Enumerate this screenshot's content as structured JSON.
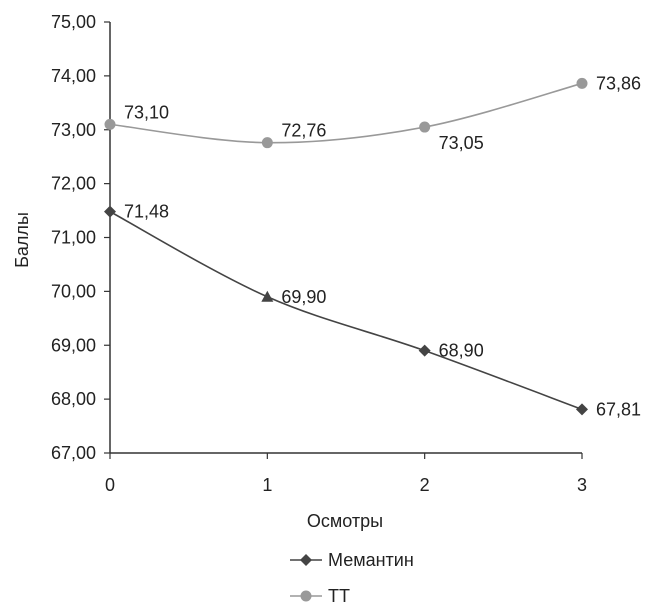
{
  "chart_data": {
    "type": "line",
    "title": "",
    "xlabel": "Осмотры",
    "ylabel": "Баллы",
    "x": [
      0,
      1,
      2,
      3
    ],
    "x_tick_labels": [
      "0",
      "1",
      "2",
      "3"
    ],
    "ylim": [
      67,
      75
    ],
    "y_tick_labels": [
      "67,00",
      "68,00",
      "69,00",
      "70,00",
      "71,00",
      "72,00",
      "73,00",
      "74,00",
      "75,00"
    ],
    "grid": false,
    "legend_position": "bottom",
    "series": [
      {
        "name": "Мемантин",
        "values": [
          71.48,
          69.9,
          68.9,
          67.81
        ],
        "labels": [
          "71,48",
          "69,90",
          "68,90",
          "67,81"
        ],
        "markers": [
          "diamond",
          "triangle",
          "diamond",
          "diamond"
        ],
        "color": "#444444"
      },
      {
        "name": "ТТ",
        "values": [
          73.1,
          72.76,
          73.05,
          73.86
        ],
        "labels": [
          "73,10",
          "72,76",
          "73,05",
          "73,86"
        ],
        "markers": [
          "circle",
          "circle",
          "circle",
          "circle"
        ],
        "color": "#999999"
      }
    ]
  }
}
